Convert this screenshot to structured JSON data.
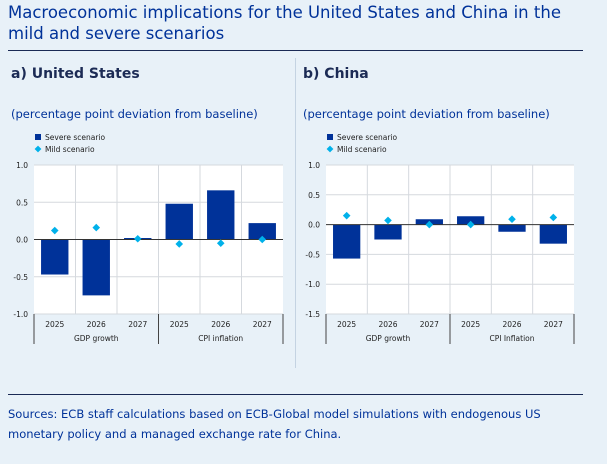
{
  "title": "Macroeconomic implications for the United States and China in the mild and severe scenarios",
  "source": "Sources: ECB staff calculations based on ECB-Global model simulations with endogenous US monetary policy and a managed exchange rate for China.",
  "colors": {
    "severe": "#003299",
    "mild": "#00b1ea",
    "title": "#003299",
    "plot_bg": "#ffffff",
    "page_bg": "#e8f1f8"
  },
  "chart_data": [
    {
      "type": "bar",
      "panel_title": "a) United States",
      "unit_label": "(percentage point deviation from baseline)",
      "categories": [
        "2025",
        "2026",
        "2027",
        "2025",
        "2026",
        "2027"
      ],
      "groups": [
        {
          "label": "GDP growth",
          "categories": [
            "2025",
            "2026",
            "2027"
          ]
        },
        {
          "label": "CPI inflation",
          "categories": [
            "2025",
            "2026",
            "2027"
          ]
        }
      ],
      "series": [
        {
          "name": "Severe scenario",
          "kind": "bar",
          "values": [
            -0.47,
            -0.75,
            0.02,
            0.48,
            0.66,
            0.22
          ]
        },
        {
          "name": "Mild scenario",
          "kind": "marker",
          "values": [
            0.12,
            0.16,
            0.01,
            -0.06,
            -0.05,
            0.0
          ]
        }
      ],
      "ylim": [
        -1.0,
        1.0
      ],
      "yticks": [
        "1.0",
        "0.5",
        "0.0",
        "-0.5",
        "-1.0"
      ],
      "ytick_values": [
        1.0,
        0.5,
        0.0,
        -0.5,
        -1.0
      ],
      "xlabel": "",
      "ylabel": "",
      "grid": true,
      "legend_position": "top-left"
    },
    {
      "type": "bar",
      "panel_title": "b) China",
      "unit_label": "(percentage point deviation from baseline)",
      "categories": [
        "2025",
        "2026",
        "2027",
        "2025",
        "2026",
        "2027"
      ],
      "groups": [
        {
          "label": "GDP growth",
          "categories": [
            "2025",
            "2026",
            "2027"
          ]
        },
        {
          "label": "CPI Inflation",
          "categories": [
            "2025",
            "2026",
            "2027"
          ]
        }
      ],
      "series": [
        {
          "name": "Severe scenario",
          "kind": "bar",
          "values": [
            -0.57,
            -0.25,
            0.09,
            0.14,
            -0.12,
            -0.32
          ]
        },
        {
          "name": "Mild scenario",
          "kind": "marker",
          "values": [
            0.15,
            0.07,
            0.0,
            0.0,
            0.09,
            0.12
          ]
        }
      ],
      "ylim": [
        -1.5,
        1.0
      ],
      "yticks": [
        "1.0",
        "0.5",
        "0.0",
        "-0.5",
        "-1.0",
        "-1.5"
      ],
      "ytick_values": [
        1.0,
        0.5,
        0.0,
        -0.5,
        -1.0,
        -1.5
      ],
      "xlabel": "",
      "ylabel": "",
      "grid": true,
      "legend_position": "top-left"
    }
  ]
}
